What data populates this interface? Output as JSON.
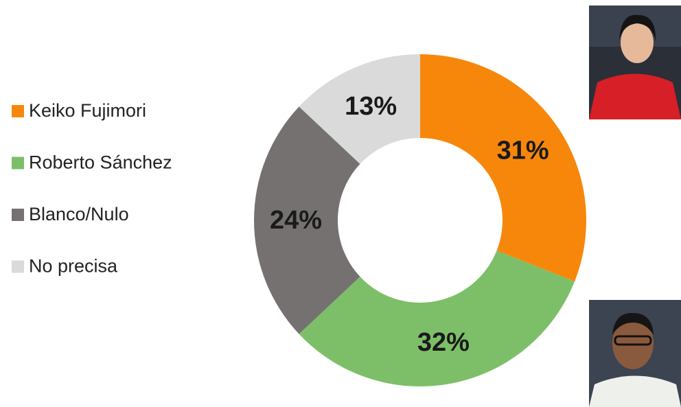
{
  "chart_data": {
    "type": "pie",
    "donut": true,
    "legend": "left",
    "categories": [
      "Keiko Fujimori",
      "Roberto Sánchez",
      "Blanco/Nulo",
      "No precisa"
    ],
    "values": [
      31,
      32,
      24,
      13
    ],
    "value_labels": [
      "31%",
      "32%",
      "24%",
      "13%"
    ],
    "colors": [
      "#f7870b",
      "#7dbf68",
      "#757170",
      "#dadada"
    ]
  }
}
